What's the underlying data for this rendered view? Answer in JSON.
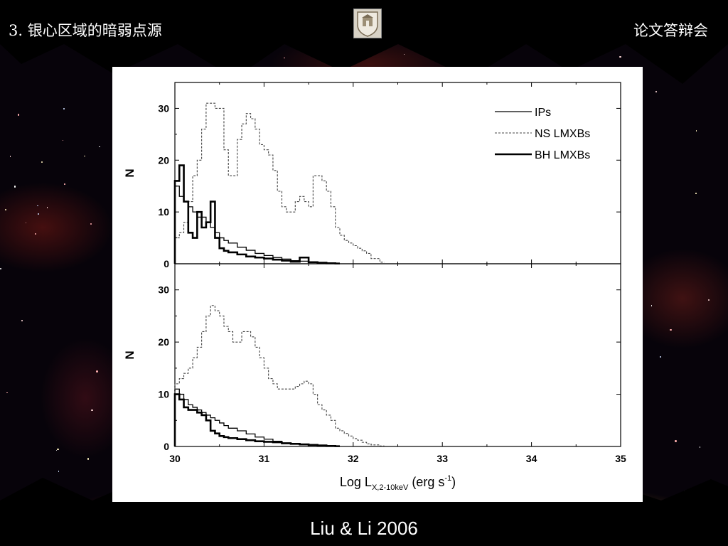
{
  "header": {
    "title": "3. 银心区域的暗弱点源",
    "right_text": "论文答辩会",
    "logo_icon": "university-crest-icon"
  },
  "colors": {
    "header_bg": "#000000",
    "text": "#ffffff",
    "panel_bg": "#ffffff",
    "plot_line": "#000000"
  },
  "chart_data": [
    {
      "type": "line",
      "style": "step histogram",
      "ylabel": "N",
      "xlim": [
        30,
        35
      ],
      "ylim": [
        0,
        35
      ],
      "yticks": [
        "0",
        "10",
        "20",
        "30"
      ],
      "grid": false,
      "legend": {
        "placement": "top-right",
        "entries": [
          "IPs",
          "NS LMXBs",
          "BH LMXBs"
        ]
      },
      "series": [
        {
          "name": "IPs",
          "line": "solid-thin",
          "x": [
            30,
            30.05,
            30.1,
            30.15,
            30.2,
            30.25,
            30.3,
            30.35,
            30.4,
            30.45,
            30.5,
            30.55,
            30.6,
            30.7,
            30.8,
            30.9,
            31,
            31.1,
            31.2,
            31.3,
            31.4,
            31.5,
            31.6,
            31.7,
            31.8
          ],
          "y": [
            15,
            13,
            12,
            11,
            10,
            9,
            9,
            8,
            7,
            6,
            5,
            4.5,
            4,
            3.2,
            2.6,
            2,
            1.6,
            1.2,
            0.9,
            0.6,
            0.5,
            0.3,
            0.2,
            0.15,
            0.1
          ]
        },
        {
          "name": "NS LMXBs",
          "line": "dashed",
          "x": [
            30,
            30.05,
            30.1,
            30.15,
            30.2,
            30.25,
            30.3,
            30.35,
            30.4,
            30.45,
            30.5,
            30.55,
            30.6,
            30.65,
            30.7,
            30.75,
            30.8,
            30.85,
            30.9,
            30.95,
            31,
            31.05,
            31.1,
            31.15,
            31.2,
            31.25,
            31.3,
            31.35,
            31.4,
            31.45,
            31.5,
            31.55,
            31.6,
            31.65,
            31.7,
            31.75,
            31.8,
            31.85,
            31.9,
            31.95,
            32,
            32.05,
            32.1,
            32.15,
            32.2,
            32.3
          ],
          "y": [
            5,
            6,
            8,
            12,
            17,
            20,
            26,
            31,
            31,
            30,
            30,
            22,
            17,
            17,
            24,
            27,
            29,
            28,
            26,
            23,
            22,
            21,
            18,
            14,
            11,
            10,
            10,
            12,
            13,
            12,
            11,
            17,
            17,
            16,
            14,
            11,
            7,
            5.5,
            4.5,
            4,
            3.5,
            3,
            2.5,
            2,
            1,
            0.3
          ]
        },
        {
          "name": "BH LMXBs",
          "line": "solid-thick",
          "x": [
            30,
            30.05,
            30.1,
            30.15,
            30.2,
            30.25,
            30.3,
            30.35,
            30.4,
            30.45,
            30.5,
            30.55,
            30.6,
            30.7,
            30.8,
            30.9,
            31,
            31.1,
            31.2,
            31.3,
            31.4,
            31.5,
            31.6,
            31.7,
            31.8
          ],
          "y": [
            16,
            19,
            12,
            6,
            5,
            10,
            7,
            8,
            12,
            5,
            3,
            2.5,
            2.2,
            1.8,
            1.4,
            1.2,
            1,
            0.8,
            0.6,
            0.4,
            1.2,
            0.3,
            0.2,
            0.1,
            0.05
          ]
        }
      ]
    },
    {
      "type": "line",
      "style": "step histogram",
      "ylabel": "N",
      "xlabel": "Log L",
      "xlabel_subscript": "X,2-10keV",
      "xlabel_units": "(erg s",
      "xlabel_units_sup": "-1",
      "xlabel_close": ")",
      "xlim": [
        30,
        35
      ],
      "ylim": [
        0,
        35
      ],
      "yticks": [
        "0",
        "10",
        "20",
        "30"
      ],
      "xticks": [
        "30",
        "31",
        "32",
        "33",
        "34",
        "35"
      ],
      "grid": false,
      "series": [
        {
          "name": "IPs",
          "line": "solid-thin",
          "x": [
            30,
            30.05,
            30.1,
            30.15,
            30.2,
            30.25,
            30.3,
            30.35,
            30.4,
            30.45,
            30.5,
            30.55,
            30.6,
            30.7,
            30.8,
            30.9,
            31,
            31.1,
            31.2,
            31.3,
            31.4,
            31.5,
            31.6,
            31.7,
            31.8
          ],
          "y": [
            11,
            10,
            9,
            8,
            7.5,
            7,
            6.5,
            6,
            5.5,
            5,
            4.5,
            4,
            3.5,
            3,
            2.4,
            1.8,
            1.4,
            1.0,
            0.7,
            0.5,
            0.3,
            0.2,
            0.15,
            0.1,
            0.05
          ]
        },
        {
          "name": "NS LMXBs",
          "line": "dashed",
          "x": [
            30,
            30.05,
            30.1,
            30.15,
            30.2,
            30.25,
            30.3,
            30.35,
            30.4,
            30.45,
            30.5,
            30.55,
            30.6,
            30.65,
            30.7,
            30.75,
            30.8,
            30.85,
            30.9,
            30.95,
            31,
            31.05,
            31.1,
            31.15,
            31.2,
            31.25,
            31.3,
            31.35,
            31.4,
            31.45,
            31.5,
            31.55,
            31.6,
            31.65,
            31.7,
            31.75,
            31.8,
            31.85,
            31.9,
            31.95,
            32,
            32.05,
            32.1,
            32.15,
            32.2,
            32.3
          ],
          "y": [
            12,
            13,
            14,
            15,
            17,
            19,
            22,
            25,
            27,
            26,
            25,
            23,
            22,
            20,
            20,
            22,
            22,
            21,
            19,
            17,
            15,
            13,
            12,
            11,
            11,
            11,
            11,
            11.5,
            12,
            12.5,
            12,
            10,
            8,
            7,
            6,
            5,
            3.5,
            3,
            2.5,
            2,
            1.5,
            1.2,
            0.8,
            0.5,
            0.3,
            0.1
          ]
        },
        {
          "name": "BH LMXBs",
          "line": "solid-thick",
          "x": [
            30,
            30.05,
            30.1,
            30.15,
            30.2,
            30.25,
            30.3,
            30.35,
            30.4,
            30.45,
            30.5,
            30.55,
            30.6,
            30.7,
            30.8,
            30.9,
            31,
            31.1,
            31.2,
            31.3,
            31.4,
            31.5,
            31.6,
            31.7,
            31.8
          ],
          "y": [
            10,
            9,
            7.5,
            7,
            7,
            6.5,
            6,
            5,
            3,
            2.5,
            2,
            1.8,
            1.6,
            1.4,
            1.2,
            1,
            0.9,
            0.8,
            0.6,
            0.5,
            0.4,
            0.3,
            0.2,
            0.1,
            0.05
          ]
        }
      ]
    }
  ],
  "citation": "Liu & Li 2006"
}
